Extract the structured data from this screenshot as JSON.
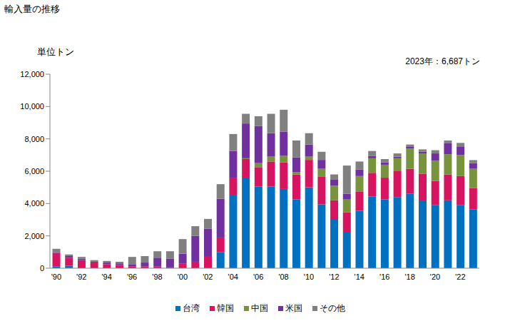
{
  "chart_data": {
    "type": "bar",
    "title": "輸入量の推移",
    "y_label": "単位トン",
    "annotation": "2023年：6,687トン",
    "stacked": true,
    "grid": false,
    "legend": "bottom",
    "categories": [
      "'90",
      null,
      "'92",
      null,
      "'94",
      null,
      "'96",
      null,
      "'98",
      null,
      "'00",
      null,
      "'02",
      null,
      "'04",
      null,
      "'06",
      null,
      "'08",
      null,
      "'10",
      null,
      "'12",
      null,
      "'14",
      null,
      "'16",
      null,
      "'18",
      null,
      "'20",
      null,
      "'22",
      null
    ],
    "ylim": [
      0,
      12000
    ],
    "yticks": [
      0,
      {
        "value": 2000,
        "label": "2,000"
      },
      {
        "value": 4000,
        "label": "4,000"
      },
      {
        "value": 6000,
        "label": "6,000"
      },
      {
        "value": 8000,
        "label": "8,000"
      },
      {
        "value": 10000,
        "label": "10,000"
      },
      {
        "value": 12000,
        "label": "12,000"
      }
    ],
    "series": [
      {
        "name": "台湾",
        "color": "#0070c0",
        "values": [
          100,
          150,
          0,
          0,
          0,
          0,
          0,
          0,
          0,
          0,
          0,
          0,
          0,
          1000,
          4500,
          5600,
          5050,
          5050,
          4900,
          4250,
          5000,
          3950,
          3000,
          2250,
          3550,
          4450,
          4250,
          4400,
          4600,
          4150,
          3900,
          4200,
          3900,
          3650
        ]
      },
      {
        "name": "韓国",
        "color": "#d6145f",
        "values": [
          850,
          500,
          500,
          350,
          250,
          200,
          100,
          100,
          100,
          50,
          300,
          400,
          750,
          900,
          1100,
          1150,
          1200,
          1550,
          1650,
          1550,
          1700,
          1700,
          1200,
          1200,
          1200,
          1450,
          1350,
          1600,
          1550,
          1700,
          1500,
          1600,
          1800,
          1300
        ]
      },
      {
        "name": "中国",
        "color": "#77933c",
        "values": [
          0,
          0,
          0,
          0,
          0,
          0,
          0,
          0,
          0,
          0,
          0,
          0,
          0,
          0,
          0,
          50,
          250,
          300,
          400,
          150,
          200,
          500,
          900,
          800,
          950,
          900,
          800,
          800,
          1250,
          1250,
          1250,
          1250,
          1300,
          1200
        ]
      },
      {
        "name": "米国",
        "color": "#7030a0",
        "values": [
          50,
          100,
          100,
          50,
          100,
          100,
          150,
          250,
          550,
          550,
          600,
          1600,
          1700,
          2400,
          1650,
          2150,
          2300,
          1450,
          1500,
          900,
          750,
          550,
          400,
          350,
          400,
          150,
          150,
          100,
          100,
          100,
          450,
          700,
          500,
          350
        ]
      },
      {
        "name": "その他",
        "color": "#808080",
        "values": [
          200,
          100,
          100,
          100,
          100,
          100,
          450,
          400,
          400,
          450,
          900,
          600,
          600,
          900,
          1050,
          600,
          600,
          1200,
          1350,
          1050,
          700,
          500,
          300,
          1750,
          500,
          300,
          200,
          200,
          150,
          150,
          200,
          150,
          250,
          187
        ]
      }
    ]
  }
}
